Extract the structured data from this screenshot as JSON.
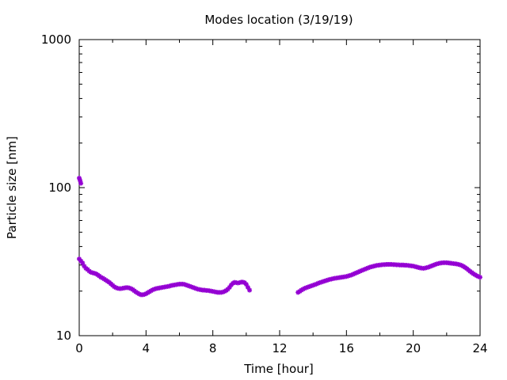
{
  "chart_data": {
    "type": "scatter",
    "title": "Modes location (3/19/19)",
    "xlabel": "Time [hour]",
    "ylabel": "Particle size [nm]",
    "xlim": [
      0,
      24
    ],
    "ylim": [
      10,
      1000
    ],
    "yscale": "log",
    "grid": false,
    "marker_color": "#9400d3",
    "x_ticks": [
      "0",
      "4",
      "8",
      "12",
      "16",
      "20",
      "24"
    ],
    "y_ticks": [
      "10",
      "100",
      "1000"
    ],
    "series": [
      {
        "points": [
          [
            0.0,
            116
          ],
          [
            0.05,
            112
          ],
          [
            0.1,
            107
          ],
          [
            0.0,
            33
          ],
          [
            0.1,
            32
          ],
          [
            0.2,
            31
          ],
          [
            0.3,
            29.5
          ],
          [
            0.4,
            28.5
          ],
          [
            0.5,
            28
          ],
          [
            0.6,
            27.3
          ],
          [
            0.7,
            26.8
          ],
          [
            0.8,
            26.6
          ],
          [
            0.9,
            26.4
          ],
          [
            1.0,
            26.2
          ],
          [
            1.1,
            25.8
          ],
          [
            1.2,
            25.3
          ],
          [
            1.3,
            24.8
          ],
          [
            1.4,
            24.5
          ],
          [
            1.5,
            24.1
          ],
          [
            1.6,
            23.7
          ],
          [
            1.7,
            23.3
          ],
          [
            1.8,
            22.9
          ],
          [
            1.9,
            22.4
          ],
          [
            2.0,
            21.9
          ],
          [
            2.1,
            21.4
          ],
          [
            2.2,
            21.1
          ],
          [
            2.3,
            20.9
          ],
          [
            2.4,
            20.8
          ],
          [
            2.5,
            20.8
          ],
          [
            2.6,
            20.9
          ],
          [
            2.7,
            21.0
          ],
          [
            2.8,
            21.1
          ],
          [
            2.9,
            21.1
          ],
          [
            3.0,
            21.0
          ],
          [
            3.1,
            20.8
          ],
          [
            3.2,
            20.5
          ],
          [
            3.3,
            20.1
          ],
          [
            3.4,
            19.7
          ],
          [
            3.5,
            19.4
          ],
          [
            3.6,
            19.1
          ],
          [
            3.7,
            18.9
          ],
          [
            3.8,
            18.9
          ],
          [
            3.9,
            19.0
          ],
          [
            4.0,
            19.2
          ],
          [
            4.1,
            19.5
          ],
          [
            4.2,
            19.8
          ],
          [
            4.3,
            20.1
          ],
          [
            4.4,
            20.4
          ],
          [
            4.5,
            20.6
          ],
          [
            4.6,
            20.8
          ],
          [
            4.7,
            20.9
          ],
          [
            4.8,
            21.0
          ],
          [
            4.9,
            21.1
          ],
          [
            5.0,
            21.2
          ],
          [
            5.1,
            21.3
          ],
          [
            5.2,
            21.4
          ],
          [
            5.3,
            21.5
          ],
          [
            5.4,
            21.6
          ],
          [
            5.5,
            21.8
          ],
          [
            5.6,
            21.9
          ],
          [
            5.7,
            22.0
          ],
          [
            5.8,
            22.1
          ],
          [
            5.9,
            22.2
          ],
          [
            6.0,
            22.3
          ],
          [
            6.1,
            22.3
          ],
          [
            6.2,
            22.3
          ],
          [
            6.3,
            22.2
          ],
          [
            6.4,
            22.0
          ],
          [
            6.5,
            21.8
          ],
          [
            6.6,
            21.6
          ],
          [
            6.7,
            21.4
          ],
          [
            6.8,
            21.2
          ],
          [
            6.9,
            21.0
          ],
          [
            7.0,
            20.8
          ],
          [
            7.1,
            20.6
          ],
          [
            7.2,
            20.5
          ],
          [
            7.3,
            20.4
          ],
          [
            7.4,
            20.3
          ],
          [
            7.5,
            20.3
          ],
          [
            7.6,
            20.2
          ],
          [
            7.7,
            20.2
          ],
          [
            7.8,
            20.1
          ],
          [
            7.9,
            20.0
          ],
          [
            8.0,
            19.9
          ],
          [
            8.1,
            19.8
          ],
          [
            8.2,
            19.7
          ],
          [
            8.3,
            19.6
          ],
          [
            8.4,
            19.6
          ],
          [
            8.5,
            19.6
          ],
          [
            8.6,
            19.7
          ],
          [
            8.7,
            19.9
          ],
          [
            8.8,
            20.2
          ],
          [
            8.9,
            20.6
          ],
          [
            9.0,
            21.2
          ],
          [
            9.1,
            22.0
          ],
          [
            9.2,
            22.6
          ],
          [
            9.3,
            22.9
          ],
          [
            9.4,
            22.8
          ],
          [
            9.5,
            22.7
          ],
          [
            9.6,
            22.8
          ],
          [
            9.7,
            23.0
          ],
          [
            9.8,
            23.0
          ],
          [
            9.9,
            22.8
          ],
          [
            10.0,
            22.2
          ],
          [
            10.1,
            21.2
          ],
          [
            10.2,
            20.3
          ],
          [
            13.1,
            19.6
          ],
          [
            13.2,
            19.9
          ],
          [
            13.3,
            20.3
          ],
          [
            13.4,
            20.6
          ],
          [
            13.5,
            20.9
          ],
          [
            13.6,
            21.1
          ],
          [
            13.7,
            21.3
          ],
          [
            13.8,
            21.5
          ],
          [
            13.9,
            21.7
          ],
          [
            14.0,
            21.9
          ],
          [
            14.1,
            22.1
          ],
          [
            14.2,
            22.3
          ],
          [
            14.3,
            22.6
          ],
          [
            14.4,
            22.8
          ],
          [
            14.5,
            23.0
          ],
          [
            14.6,
            23.2
          ],
          [
            14.7,
            23.4
          ],
          [
            14.8,
            23.6
          ],
          [
            14.9,
            23.8
          ],
          [
            15.0,
            24.0
          ],
          [
            15.1,
            24.1
          ],
          [
            15.2,
            24.3
          ],
          [
            15.3,
            24.4
          ],
          [
            15.4,
            24.5
          ],
          [
            15.5,
            24.6
          ],
          [
            15.6,
            24.7
          ],
          [
            15.7,
            24.8
          ],
          [
            15.8,
            24.9
          ],
          [
            15.9,
            25.0
          ],
          [
            16.0,
            25.1
          ],
          [
            16.1,
            25.3
          ],
          [
            16.2,
            25.5
          ],
          [
            16.3,
            25.7
          ],
          [
            16.4,
            26.0
          ],
          [
            16.5,
            26.3
          ],
          [
            16.6,
            26.6
          ],
          [
            16.7,
            26.9
          ],
          [
            16.8,
            27.2
          ],
          [
            16.9,
            27.5
          ],
          [
            17.0,
            27.8
          ],
          [
            17.1,
            28.1
          ],
          [
            17.2,
            28.4
          ],
          [
            17.3,
            28.7
          ],
          [
            17.4,
            29.0
          ],
          [
            17.5,
            29.2
          ],
          [
            17.6,
            29.4
          ],
          [
            17.7,
            29.6
          ],
          [
            17.8,
            29.8
          ],
          [
            17.9,
            29.9
          ],
          [
            18.0,
            30.0
          ],
          [
            18.1,
            30.1
          ],
          [
            18.2,
            30.2
          ],
          [
            18.3,
            30.2
          ],
          [
            18.4,
            30.3
          ],
          [
            18.5,
            30.3
          ],
          [
            18.6,
            30.3
          ],
          [
            18.7,
            30.3
          ],
          [
            18.8,
            30.2
          ],
          [
            18.9,
            30.2
          ],
          [
            19.0,
            30.1
          ],
          [
            19.1,
            30.1
          ],
          [
            19.2,
            30.0
          ],
          [
            19.3,
            30.0
          ],
          [
            19.4,
            30.0
          ],
          [
            19.5,
            29.9
          ],
          [
            19.6,
            29.9
          ],
          [
            19.7,
            29.8
          ],
          [
            19.8,
            29.7
          ],
          [
            19.9,
            29.6
          ],
          [
            20.0,
            29.5
          ],
          [
            20.1,
            29.3
          ],
          [
            20.2,
            29.1
          ],
          [
            20.3,
            28.9
          ],
          [
            20.4,
            28.7
          ],
          [
            20.5,
            28.6
          ],
          [
            20.6,
            28.5
          ],
          [
            20.7,
            28.6
          ],
          [
            20.8,
            28.8
          ],
          [
            20.9,
            29.0
          ],
          [
            21.0,
            29.3
          ],
          [
            21.1,
            29.6
          ],
          [
            21.2,
            29.9
          ],
          [
            21.3,
            30.2
          ],
          [
            21.4,
            30.5
          ],
          [
            21.5,
            30.7
          ],
          [
            21.6,
            30.9
          ],
          [
            21.7,
            31.0
          ],
          [
            21.8,
            31.1
          ],
          [
            21.9,
            31.1
          ],
          [
            22.0,
            31.1
          ],
          [
            22.1,
            31.0
          ],
          [
            22.2,
            30.9
          ],
          [
            22.3,
            30.8
          ],
          [
            22.4,
            30.7
          ],
          [
            22.5,
            30.6
          ],
          [
            22.6,
            30.5
          ],
          [
            22.7,
            30.3
          ],
          [
            22.8,
            30.1
          ],
          [
            22.9,
            29.8
          ],
          [
            23.0,
            29.4
          ],
          [
            23.1,
            28.9
          ],
          [
            23.2,
            28.4
          ],
          [
            23.3,
            27.8
          ],
          [
            23.4,
            27.2
          ],
          [
            23.5,
            26.7
          ],
          [
            23.6,
            26.2
          ],
          [
            23.7,
            25.8
          ],
          [
            23.8,
            25.4
          ],
          [
            23.9,
            25.1
          ],
          [
            24.0,
            24.8
          ]
        ]
      }
    ]
  }
}
